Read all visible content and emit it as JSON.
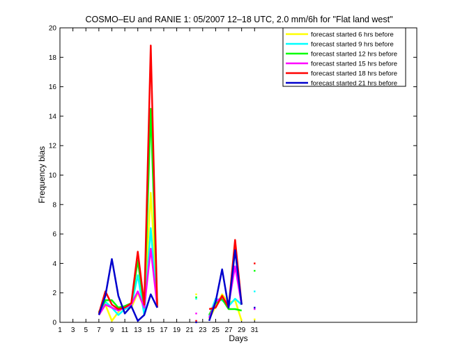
{
  "chart_data": {
    "type": "line",
    "title": "COSMO–EU and RANIE 1: 05/2007 12–18 UTC, 2.0 mm/6h for \"Flat land west\"",
    "xlabel": "Days",
    "ylabel": "Frequency bias",
    "xlim": [
      1,
      56
    ],
    "ylim": [
      0,
      20
    ],
    "xticks": [
      "1",
      "3",
      "5",
      "7",
      "9",
      "11",
      "13",
      "15",
      "17",
      "19",
      "21",
      "23",
      "25",
      "27",
      "29",
      "31"
    ],
    "yticks": [
      "0",
      "2",
      "4",
      "6",
      "8",
      "10",
      "12",
      "14",
      "16",
      "18",
      "20"
    ],
    "grid": false,
    "legend_position": "top-right",
    "series": [
      {
        "name": "forecast started 6 hrs before",
        "color": "#ffff00",
        "x": [
          7,
          8,
          9,
          10,
          11,
          12,
          13,
          14,
          15,
          16,
          null,
          22,
          null,
          24,
          25,
          26,
          27,
          28,
          29,
          null,
          31
        ],
        "y": [
          0.5,
          1.2,
          0.1,
          0.7,
          1.1,
          1.0,
          2.0,
          1.0,
          8.8,
          1.5,
          null,
          1.9,
          null,
          0.2,
          1.1,
          1.9,
          1.3,
          1.5,
          0.1,
          null,
          0.2
        ]
      },
      {
        "name": "forecast started 9 hrs before",
        "color": "#00ffff",
        "x": [
          7,
          8,
          9,
          10,
          11,
          12,
          13,
          14,
          15,
          16,
          null,
          22,
          null,
          24,
          25,
          26,
          27,
          28,
          29,
          null,
          31
        ],
        "y": [
          0.6,
          1.4,
          1.0,
          0.5,
          0.9,
          1.1,
          3.2,
          0.5,
          6.4,
          1.0,
          null,
          1.6,
          null,
          0.4,
          1.6,
          1.5,
          1.1,
          1.6,
          1.2,
          null,
          2.1
        ]
      },
      {
        "name": "forecast started 12 hrs before",
        "color": "#00ff00",
        "x": [
          7,
          8,
          9,
          10,
          11,
          12,
          13,
          14,
          15,
          16,
          null,
          22,
          null,
          24,
          25,
          26,
          27,
          28,
          29,
          null,
          31
        ],
        "y": [
          0.7,
          1.5,
          1.5,
          1.0,
          1.1,
          1.3,
          4.2,
          1.0,
          14.5,
          1.2,
          null,
          1.7,
          null,
          0.5,
          1.3,
          1.6,
          0.9,
          0.9,
          0.8,
          null,
          3.5
        ]
      },
      {
        "name": "forecast started 15 hrs before",
        "color": "#ff00ff",
        "x": [
          7,
          8,
          9,
          10,
          11,
          12,
          13,
          14,
          15,
          16,
          null,
          22,
          null,
          24,
          25,
          26,
          27,
          28,
          29,
          null,
          31
        ],
        "y": [
          0.5,
          1.2,
          1.0,
          0.8,
          1.0,
          1.2,
          2.1,
          1.0,
          5.0,
          1.1,
          null,
          0.6,
          null,
          0.3,
          1.4,
          1.7,
          1.2,
          3.8,
          1.2,
          null,
          0.9
        ]
      },
      {
        "name": "forecast started 18 hrs before",
        "color": "#ff0000",
        "x": [
          7,
          8,
          9,
          10,
          11,
          12,
          13,
          14,
          15,
          16,
          null,
          22,
          null,
          24,
          25,
          26,
          27,
          28,
          29,
          null,
          31
        ],
        "y": [
          0.6,
          2.1,
          1.2,
          0.9,
          1.0,
          1.3,
          4.8,
          1.2,
          18.8,
          1.0,
          null,
          0.1,
          null,
          0.9,
          1.0,
          1.8,
          1.0,
          5.6,
          1.2,
          null,
          4.0
        ]
      },
      {
        "name": "forecast started 21 hrs before",
        "color": "#0000cd",
        "x": [
          7,
          8,
          9,
          10,
          11,
          12,
          13,
          14,
          15,
          16,
          null,
          22,
          null,
          24,
          25,
          26,
          27,
          28,
          29,
          null,
          31
        ],
        "y": [
          0.5,
          1.8,
          4.3,
          1.8,
          0.6,
          1.1,
          0.1,
          0.5,
          1.9,
          1.0,
          null,
          0.0,
          null,
          0.1,
          1.4,
          3.6,
          1.0,
          4.9,
          1.2,
          null,
          1.0
        ]
      }
    ]
  }
}
